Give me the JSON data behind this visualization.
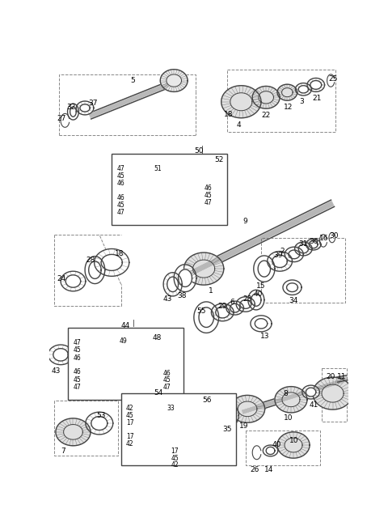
{
  "bg_color": "#ffffff",
  "lc": "#444444",
  "lc_light": "#888888",
  "figsize": [
    4.8,
    6.5
  ],
  "dpi": 100
}
